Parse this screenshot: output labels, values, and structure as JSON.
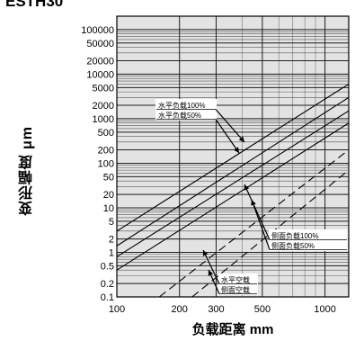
{
  "figure_title": "ESTH30",
  "chart_data": {
    "type": "line",
    "x_scale": "log",
    "y_scale": "log",
    "xlim": [
      100,
      1300
    ],
    "ylim": [
      0.1,
      200000
    ],
    "xlabel": "负载距离 mm",
    "ylabel": "变形幅度 μm",
    "x_ticks": [
      100,
      200,
      300,
      500,
      1000
    ],
    "x_tick_labels": [
      "100",
      "200",
      "300",
      "500",
      "1000"
    ],
    "y_ticks": [
      0.1,
      0.2,
      0.5,
      1,
      2,
      5,
      10,
      20,
      50,
      100,
      200,
      500,
      1000,
      2000,
      5000,
      10000,
      20000,
      50000,
      100000
    ],
    "y_tick_labels": [
      "0.1",
      "0.2",
      "0.5",
      "1",
      "2",
      "5",
      "10",
      "20",
      "50",
      "100",
      "200",
      "500",
      "1000",
      "2000",
      "5000",
      "10000",
      "20000",
      "50000",
      "100000"
    ],
    "grid": true,
    "series": [
      {
        "name": "水平负载100%",
        "style": "solid",
        "x": [
          100,
          1300
        ],
        "y": [
          3,
          6000
        ]
      },
      {
        "name": "水平负载50%",
        "style": "solid",
        "x": [
          100,
          1300
        ],
        "y": [
          1.4,
          3000
        ]
      },
      {
        "name": "侧面负载100%",
        "style": "solid",
        "x": [
          100,
          1300
        ],
        "y": [
          0.8,
          1500
        ]
      },
      {
        "name": "侧面负载50%",
        "style": "solid",
        "x": [
          100,
          1300
        ],
        "y": [
          0.4,
          800
        ]
      },
      {
        "name": "水平空载",
        "style": "dashed",
        "x": [
          160,
          1300
        ],
        "y": [
          0.1,
          200
        ]
      },
      {
        "name": "侧面空载",
        "style": "dashed",
        "x": [
          230,
          1300
        ],
        "y": [
          0.1,
          70
        ]
      }
    ],
    "annotations": [
      "水平负载100%",
      "水平负载50%",
      "侧面负载100%",
      "侧面负载50%",
      "水平空载",
      "侧面空载"
    ]
  }
}
